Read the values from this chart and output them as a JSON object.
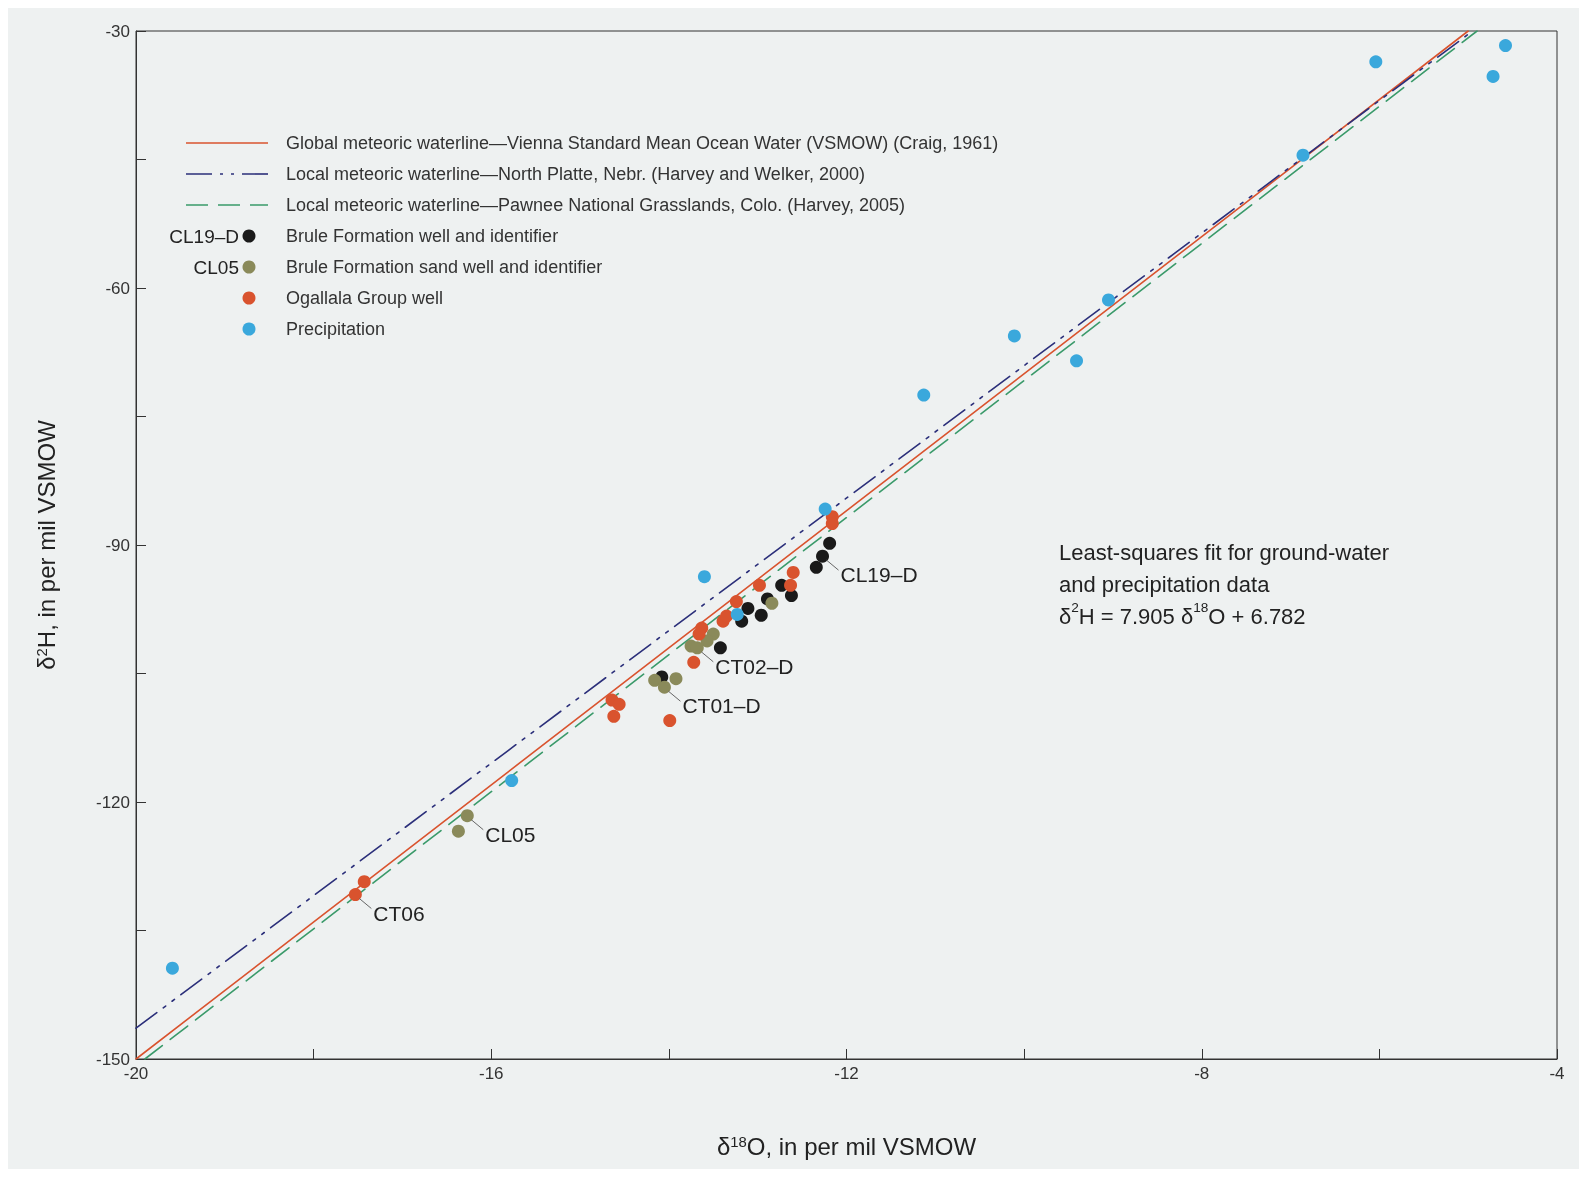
{
  "chart_data": {
    "type": "scatter",
    "xlabel": "δ$^{18}$O, in per mil VSMOW",
    "ylabel": "δ$^{2}$H, in per mil VSMOW",
    "xlim": [
      -20,
      -4
    ],
    "xticks": [
      -20,
      {
        "value": -18,
        "label": null
      },
      -16,
      {
        "value": -14,
        "label": null
      },
      -12,
      {
        "value": -10,
        "label": null
      },
      -8,
      {
        "value": -6,
        "label": null
      },
      -4
    ],
    "ylim": [
      -150,
      -30
    ],
    "yticks": [
      -150,
      {
        "value": -135,
        "label": null
      },
      -120,
      {
        "value": -105,
        "label": null
      },
      -90,
      {
        "value": -75,
        "label": null
      },
      -60,
      {
        "value": -45,
        "label": null
      },
      -30
    ],
    "grid": false,
    "legend": "top left",
    "marker": "circle",
    "series": [
      {
        "name": "Global meteoric waterline—Vienna Standard Mean Ocean Water (VSMOW) (Craig, 1961)",
        "type": "line",
        "marker": "none",
        "line_style": "solid",
        "color": "#d9532e",
        "x": [
          -20,
          -5
        ],
        "values": [
          -150,
          -30
        ]
      },
      {
        "name": "Local meteoric waterline—North Platte, Nebr. (Harvey and Welker, 2000)",
        "type": "line",
        "marker": "none",
        "line_style": "dashdot",
        "color": "#2b2f7a",
        "x": [
          -20,
          -4.95
        ],
        "values": [
          -146.4,
          -30
        ]
      },
      {
        "name": "Local meteoric waterline—Pawnee National Grasslands, Colo. (Harvey, 2005)",
        "type": "line",
        "marker": "none",
        "line_style": "dashed",
        "color": "#3a9a6a",
        "x": [
          -19.9,
          -4.9
        ],
        "values": [
          -150,
          -30
        ]
      },
      {
        "name": "Brule Formation well and identifier",
        "color": "#1a1a1a",
        "x": [
          -12.19,
          -12.27,
          -12.34,
          -12.73,
          -12.62,
          -12.89,
          -12.96,
          -13.11,
          -13.18,
          -13.42,
          -14.08
        ],
        "values": [
          -89.8,
          -91.3,
          -92.6,
          -94.7,
          -95.9,
          -96.3,
          -98.2,
          -97.4,
          -98.9,
          -102.0,
          -105.4
        ]
      },
      {
        "name": "Brule Formation sand well and identifier",
        "color": "#8a8a5a",
        "x": [
          -16.37,
          -16.27,
          -12.84,
          -13.5,
          -13.57,
          -13.75,
          -13.68,
          -14.16,
          -14.05,
          -13.92
        ],
        "values": [
          -123.4,
          -121.6,
          -96.8,
          -100.4,
          -101.2,
          -101.8,
          -102.0,
          -105.8,
          -106.6,
          -105.6
        ]
      },
      {
        "name": "Ogallala Group well",
        "color": "#d9532e",
        "x": [
          -17.53,
          -17.43,
          -14.64,
          -14.56,
          -14.62,
          -13.99,
          -13.72,
          -13.63,
          -13.66,
          -13.39,
          -13.35,
          -13.24,
          -12.98,
          -12.63,
          -12.6,
          -12.16,
          -12.16
        ],
        "values": [
          -130.8,
          -129.3,
          -108.1,
          -108.6,
          -110.0,
          -110.5,
          -103.7,
          -99.7,
          -100.4,
          -98.9,
          -98.3,
          -96.6,
          -94.7,
          -94.7,
          -93.2,
          -86.7,
          -87.5
        ]
      },
      {
        "name": "Precipitation",
        "color": "#3aa8dc",
        "x": [
          -19.59,
          -15.77,
          -13.6,
          -13.23,
          -12.24,
          -11.13,
          -10.11,
          -9.41,
          -9.05,
          -6.86,
          -6.04,
          -4.72,
          -4.58
        ],
        "values": [
          -139.4,
          -117.5,
          -93.7,
          -98.1,
          -85.8,
          -72.5,
          -65.6,
          -68.5,
          -61.4,
          -44.5,
          -33.6,
          -35.3,
          -31.7
        ]
      }
    ],
    "annotations": [
      {
        "text": "CL19–D",
        "x": -12.27,
        "y": -91.3
      },
      {
        "text": "CT02–D",
        "x": -13.68,
        "y": -102.0
      },
      {
        "text": "CT01–D",
        "x": -14.05,
        "y": -106.6
      },
      {
        "text": "CL05",
        "x": -16.27,
        "y": -121.6
      },
      {
        "text": "CT06",
        "x": -17.53,
        "y": -130.8
      },
      "CL19–D",
      "CL05",
      "Least-squares fit for ground-water\nand precipitation data\nδ$^{2}$H = 7.905 δ$^{18}$O + 6.782"
    ]
  }
}
